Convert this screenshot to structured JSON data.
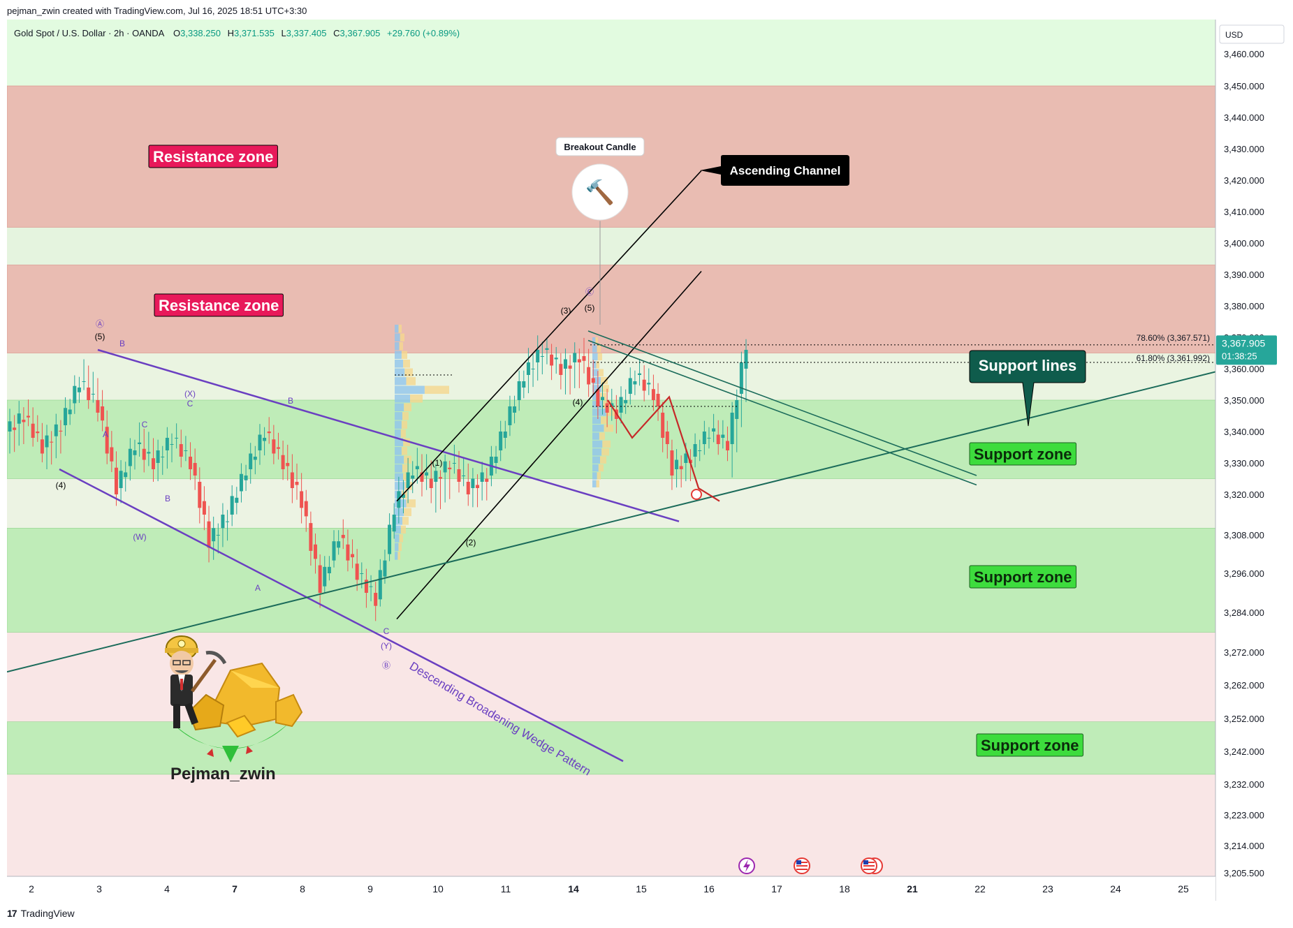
{
  "header": {
    "created_by": "pejman_zwin created with TradingView.com, Jul 16, 2025 18:51 UTC+3:30",
    "symbol_line": "Gold Spot / U.S. Dollar · 2h · OANDA",
    "open_label": "O",
    "open": "3,338.250",
    "high_label": "H",
    "high": "3,371.535",
    "low_label": "L",
    "low": "3,337.405",
    "close_label": "C",
    "close": "3,367.905",
    "change": "+29.760 (+0.89%)"
  },
  "footer": {
    "brand": "TradingView",
    "logo": "17"
  },
  "colors": {
    "up": "#26a69a",
    "down": "#ef5350",
    "resistance": "#e6a7a0",
    "support": "#a8e2a0",
    "wedge": "#6a3fc1",
    "channel": "#000000",
    "trendline": "#1b6b5a"
  },
  "chart_data": {
    "type": "candlestick",
    "title": "",
    "currency": "USD",
    "price_ticks": [
      "3,460.000",
      "3,450.000",
      "3,440.000",
      "3,430.000",
      "3,420.000",
      "3,410.000",
      "3,400.000",
      "3,390.000",
      "3,380.000",
      "3,370.000",
      "3,360.000",
      "3,350.000",
      "3,340.000",
      "3,330.000",
      "3,320.000",
      "3,308.000",
      "3,296.000",
      "3,284.000",
      "3,272.000",
      "3,262.000",
      "3,252.000",
      "3,242.000",
      "3,232.000",
      "3,223.000",
      "3,214.000",
      "3,205.500"
    ],
    "date_ticks": [
      {
        "label": "2",
        "bold": false
      },
      {
        "label": "3",
        "bold": false
      },
      {
        "label": "4",
        "bold": false
      },
      {
        "label": "7",
        "bold": true
      },
      {
        "label": "8",
        "bold": false
      },
      {
        "label": "9",
        "bold": false
      },
      {
        "label": "10",
        "bold": false
      },
      {
        "label": "11",
        "bold": false
      },
      {
        "label": "14",
        "bold": true
      },
      {
        "label": "15",
        "bold": false
      },
      {
        "label": "16",
        "bold": false
      },
      {
        "label": "17",
        "bold": false
      },
      {
        "label": "18",
        "bold": false
      },
      {
        "label": "21",
        "bold": true
      },
      {
        "label": "22",
        "bold": false
      },
      {
        "label": "23",
        "bold": false
      },
      {
        "label": "24",
        "bold": false
      },
      {
        "label": "25",
        "bold": false
      }
    ],
    "current_price": "3,367.905",
    "countdown": "01:38:25",
    "fib_levels": [
      {
        "label": "78.60% (3,367.571)",
        "price": 3367.571
      },
      {
        "label": "61.80% (3,361.992)",
        "price": 3361.992
      }
    ],
    "zones": [
      {
        "kind": "resistance",
        "top": 3450,
        "bottom": 3405,
        "label": "Resistance zone"
      },
      {
        "kind": "resistance",
        "top": 3393,
        "bottom": 3365,
        "label": "Resistance zone"
      },
      {
        "kind": "support",
        "top": 3350,
        "bottom": 3325,
        "label": "Support zone"
      },
      {
        "kind": "support",
        "top": 3310,
        "bottom": 3278,
        "label": "Support zone"
      },
      {
        "kind": "support",
        "top": 3251,
        "bottom": 3235,
        "label": "Support zone"
      }
    ],
    "annotations": {
      "breakout": "Breakout Candle",
      "channel": "Ascending Channel",
      "support_lines": "Support lines",
      "wedge": "Descending Broadening Wedge Pattern",
      "author": "Pejman_zwin",
      "hammer_icon": "🔨"
    },
    "wave_labels": [
      "Ⓐ",
      "(5)",
      "B",
      "(4)",
      "A",
      "(X)",
      "C",
      "B",
      "C",
      "(W)",
      "B",
      "A",
      "C",
      "(Y)",
      "Ⓑ",
      "(1)",
      "(2)",
      "(3)",
      "(5)",
      "Ⓒ",
      "(4)"
    ]
  }
}
